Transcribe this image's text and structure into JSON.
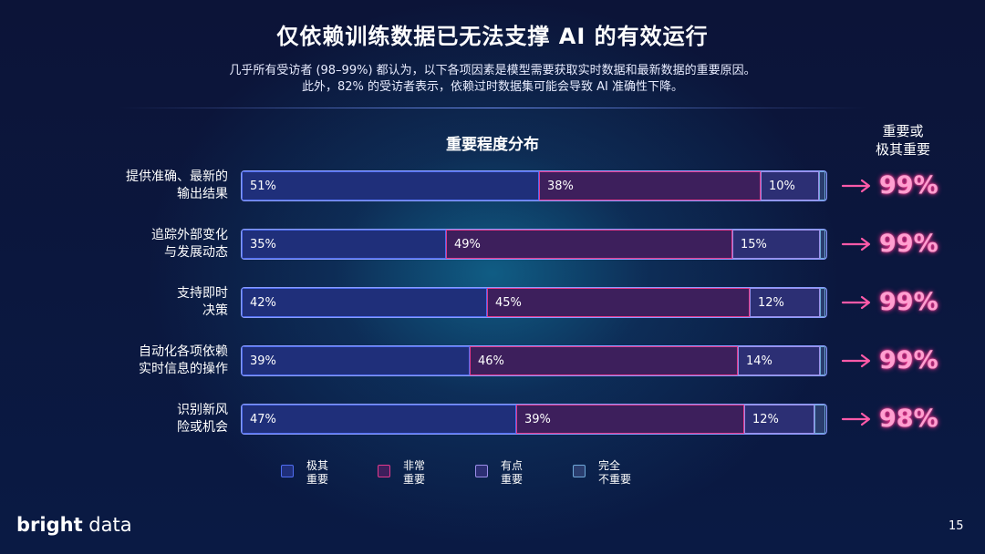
{
  "title": "仅依赖训练数据已无法支撑 AI 的有效运行",
  "subtitle_line1": "几乎所有受访者 (98–99%) 都认为，以下各项因素是模型需要获取实时数据和最新数据的重要原因。",
  "subtitle_line2": "此外，82% 的受访者表示，依赖过时数据集可能会导致 AI 准确性下降。",
  "chart_heading": "重要程度分布",
  "right_heading_line1": "重要或",
  "right_heading_line2": "极其重要",
  "colors": {
    "extremely": "#4f6df0",
    "very": "#e23a8c",
    "somewhat": "#9b8ee8",
    "not": "#6fa8d8",
    "highlight": "#ff5aa8"
  },
  "chart_data": {
    "type": "bar",
    "orientation": "horizontal",
    "stacked": true,
    "categories": [
      [
        "提供准确、最新的",
        "输出结果"
      ],
      [
        "追踪外部变化",
        "与发展动态"
      ],
      [
        "支持即时",
        "决策"
      ],
      [
        "自动化各项依赖",
        "实时信息的操作"
      ],
      [
        "识别新风",
        "险或机会"
      ]
    ],
    "series": [
      {
        "name": "极其重要",
        "values": [
          51,
          35,
          42,
          39,
          47
        ],
        "labels": [
          "51%",
          "35%",
          "42%",
          "39%",
          "47%"
        ]
      },
      {
        "name": "非常重要",
        "values": [
          38,
          49,
          45,
          46,
          39
        ],
        "labels": [
          "38%",
          "49%",
          "45%",
          "46%",
          "39%"
        ]
      },
      {
        "name": "有点重要",
        "values": [
          10,
          15,
          12,
          14,
          12
        ],
        "labels": [
          "10%",
          "15%",
          "12%",
          "14%",
          "12%"
        ]
      },
      {
        "name": "完全不重要",
        "values": [
          1,
          1,
          1,
          1,
          2
        ]
      }
    ],
    "totals": [
      "99%",
      "99%",
      "99%",
      "99%",
      "98%"
    ],
    "xlim": [
      0,
      100
    ],
    "legend": [
      [
        "极其",
        "重要"
      ],
      [
        "非常",
        "重要"
      ],
      [
        "有点",
        "重要"
      ],
      [
        "完全",
        "不重要"
      ]
    ],
    "legend_position": "bottom"
  },
  "brand": {
    "bold": "bright",
    "light": " data"
  },
  "page_number": "15"
}
